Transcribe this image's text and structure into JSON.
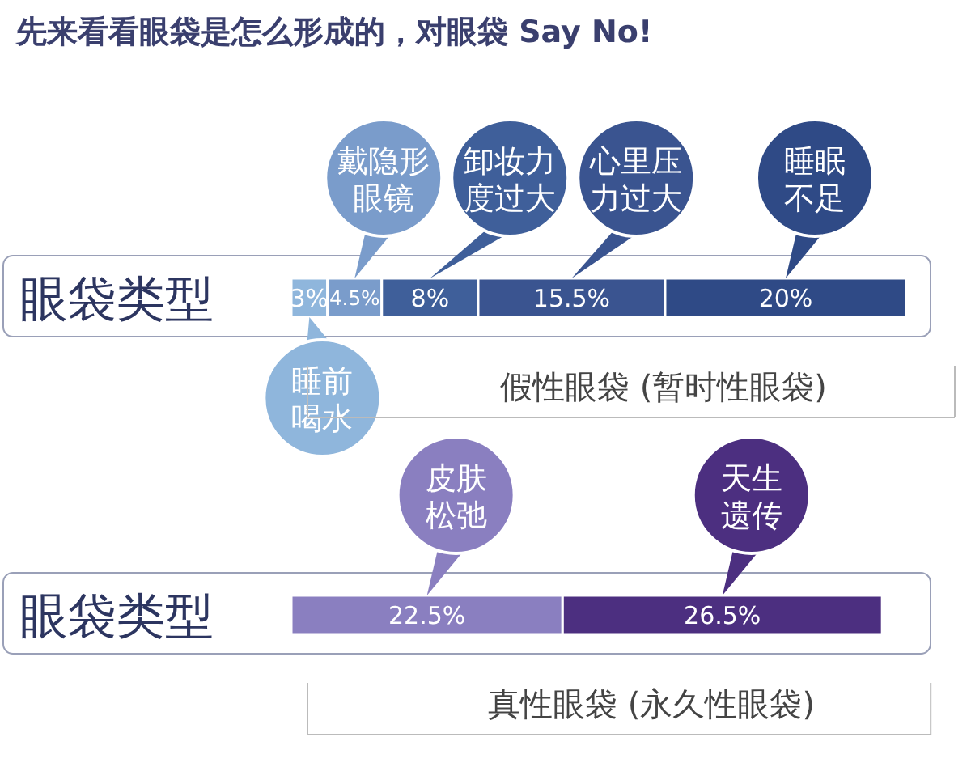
{
  "chart_data": [
    {
      "type": "bar",
      "orientation": "horizontal",
      "stacked": true,
      "title": "先来看看眼袋是怎么形成的，对眼袋 Say No!",
      "categories": [
        "眼袋类型"
      ],
      "xlabel": "假性眼袋 (暂时性眼袋)",
      "series": [
        {
          "name": "睡前喝水",
          "color": "#8fb6dc",
          "values": [
            3
          ],
          "value_labels": [
            "3%"
          ]
        },
        {
          "name": "戴隐形眼镜",
          "color": "#7a9ccb",
          "values": [
            4.5
          ],
          "value_labels": [
            "4.5%"
          ]
        },
        {
          "name": "卸妆力度过大",
          "color": "#3f5f9a",
          "values": [
            8
          ],
          "value_labels": [
            "8%"
          ]
        },
        {
          "name": "心里压力过大",
          "color": "#3a5490",
          "values": [
            15.5
          ],
          "value_labels": [
            "15.5%"
          ]
        },
        {
          "name": "睡眠不足",
          "color": "#2f4a86",
          "values": [
            20
          ],
          "value_labels": [
            "20%"
          ]
        }
      ]
    },
    {
      "type": "bar",
      "orientation": "horizontal",
      "stacked": true,
      "categories": [
        "眼袋类型"
      ],
      "xlabel": "真性眼袋 (永久性眼袋)",
      "series": [
        {
          "name": "皮肤松弛",
          "color": "#8a7fc0",
          "values": [
            22.5
          ],
          "value_labels": [
            "22.5%"
          ]
        },
        {
          "name": "天生遗传",
          "color": "#4c2f80",
          "values": [
            26.5
          ],
          "value_labels": [
            "26.5%"
          ]
        }
      ]
    }
  ]
}
